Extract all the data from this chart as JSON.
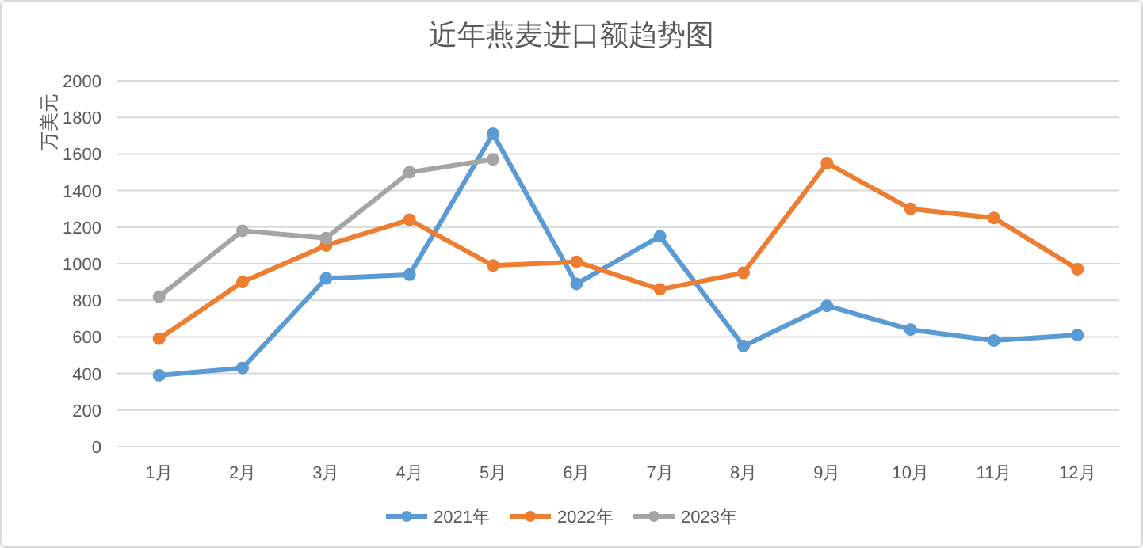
{
  "chart_data": {
    "type": "line",
    "title": "近年燕麦进口额趋势图",
    "ylabel": "万美元",
    "categories": [
      "1月",
      "2月",
      "3月",
      "4月",
      "5月",
      "6月",
      "7月",
      "8月",
      "9月",
      "10月",
      "11月",
      "12月"
    ],
    "series": [
      {
        "name": "2021年",
        "color": "#5b9bd5",
        "values": [
          390,
          430,
          920,
          940,
          1710,
          890,
          1150,
          550,
          770,
          640,
          580,
          610
        ]
      },
      {
        "name": "2022年",
        "color": "#ed7d31",
        "values": [
          590,
          900,
          1100,
          1240,
          990,
          1010,
          860,
          950,
          1550,
          1300,
          1250,
          970
        ]
      },
      {
        "name": "2023年",
        "color": "#a5a5a5",
        "values": [
          820,
          1180,
          1140,
          1500,
          1570,
          null,
          null,
          null,
          null,
          null,
          null,
          null
        ]
      }
    ],
    "ylim": [
      0,
      2000
    ],
    "yticks": [
      0,
      200,
      400,
      600,
      800,
      1000,
      1200,
      1400,
      1600,
      1800,
      2000
    ],
    "grid": "y",
    "legend": "bottom",
    "marker": "circle",
    "line_style": "solid"
  }
}
